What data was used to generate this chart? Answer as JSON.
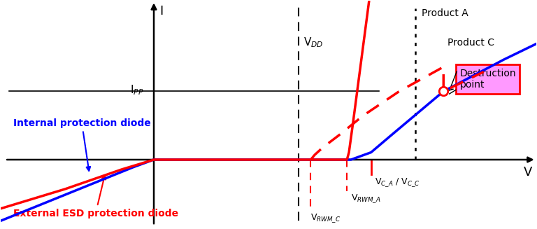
{
  "figsize": [
    7.68,
    3.27
  ],
  "dpi": 100,
  "xlim": [
    -3.8,
    9.5
  ],
  "ylim": [
    -2.8,
    6.5
  ],
  "vdd_x": 3.6,
  "vca_x": 5.4,
  "product_a_x": 6.5,
  "ipp_y": 2.8,
  "vrwm_a_x": 4.8,
  "vrwm_c_x": 3.9,
  "dest_x": 7.2,
  "dest_y": 2.8,
  "bg_color": "#ffffff",
  "blue_color": "#0000ff",
  "red_color": "#ff0000",
  "ann_box_fill": "#ff99ff",
  "ann_box_edge": "#ff0000",
  "label_internal": "Internal protection diode",
  "label_external": "External ESD protection diode",
  "label_vdd": "V$_{DD}$",
  "label_ipp": "I$_{PP}$",
  "label_vca_vcc": "V$_{C\\_A}$ / V$_{C\\_C}$",
  "label_vrwm_a": "V$_{RWM\\_A}$",
  "label_vrwm_c": "V$_{RWM\\_C}$",
  "label_product_a": "Product A",
  "label_product_c": "Product C",
  "label_destruction": "Destruction\npoint",
  "label_I": "I",
  "label_V": "V"
}
